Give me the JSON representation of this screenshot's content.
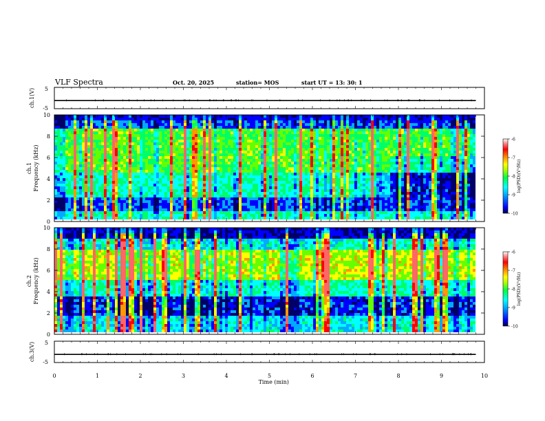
{
  "header": {
    "title": "VLF Spectra",
    "date": "Oct. 20, 2025",
    "station": "station= MOS",
    "start_ut": "start  UT  =   13: 30: 1"
  },
  "chart_data": [
    {
      "type": "line",
      "panel": "ch1-waveform",
      "ylabel": "ch.1(V)",
      "ylim": [
        -5,
        5
      ],
      "yticks": [
        "5",
        "-5"
      ],
      "xlim": [
        0,
        10
      ],
      "x": [
        0,
        9.8
      ],
      "values": [
        -1.2,
        -1.2
      ]
    },
    {
      "type": "heatmap",
      "panel": "ch1-spectrogram",
      "ylabel_line1": "ch.1",
      "ylabel_line2": "Frequency (kHz)",
      "ylim": [
        0,
        10
      ],
      "yticks": [
        "0",
        "2",
        "4",
        "6",
        "8",
        "10"
      ],
      "xlim": [
        0,
        9.8
      ],
      "colorbar": {
        "label": "log(PSD)(V²/Hz)",
        "range": [
          -10,
          -6
        ],
        "ticks": [
          "-6",
          "-7",
          "-8",
          "-9",
          "-10"
        ]
      }
    },
    {
      "type": "heatmap",
      "panel": "ch2-spectrogram",
      "ylabel_line1": "ch.2",
      "ylabel_line2": "Frequency (kHz)",
      "ylim": [
        0,
        10
      ],
      "yticks": [
        "0",
        "2",
        "4",
        "6",
        "8",
        "10"
      ],
      "xlim": [
        0,
        9.8
      ],
      "colorbar": {
        "label": "log(PSD)(V²/Hz)",
        "range": [
          -10,
          -6
        ],
        "ticks": [
          "-6",
          "-7",
          "-8",
          "-9",
          "-10"
        ]
      }
    },
    {
      "type": "line",
      "panel": "ch3-waveform",
      "ylabel": "ch.3(V)",
      "ylim": [
        -5,
        5
      ],
      "yticks": [
        "5",
        "-5"
      ],
      "xlim": [
        0,
        10
      ],
      "x": [
        0,
        9.8
      ],
      "values": [
        -1.2,
        -1.2
      ]
    }
  ],
  "xaxis": {
    "label": "Time (min)",
    "ticks": [
      "0",
      "1",
      "2",
      "3",
      "4",
      "5",
      "6",
      "7",
      "8",
      "9",
      "10"
    ],
    "range": [
      0,
      10
    ]
  },
  "colors": {
    "colormap": [
      "#000066",
      "#0000ff",
      "#00aaff",
      "#00ffff",
      "#00ff66",
      "#66ff00",
      "#ffff00",
      "#ff9900",
      "#ff0000",
      "#ff6666",
      "#ffffff"
    ]
  }
}
